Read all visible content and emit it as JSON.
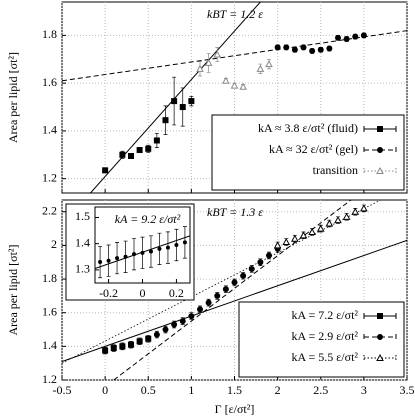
{
  "chart_data": [
    {
      "type": "errorbar",
      "annotation": "kBT = 1.2 ε",
      "ylabel": "Area per lipid [σt²]",
      "xlim": [
        -0.5,
        3.5
      ],
      "ylim": [
        1.14,
        1.94
      ],
      "xticks": [
        -0.5,
        0,
        0.5,
        1,
        1.5,
        2,
        2.5,
        3,
        3.5
      ],
      "yticks": [
        1.2,
        1.4,
        1.6,
        1.8
      ],
      "show_xtick_labels": false,
      "grid": true,
      "legend": "lower right",
      "series": [
        {
          "name": "kA ≈ 3.8 ε/σt² (fluid)",
          "color": "#000000",
          "marker": "square",
          "line": "solid",
          "x": [
            0,
            0.2,
            0.3,
            0.4,
            0.5,
            0.6,
            0.7,
            0.8,
            0.9,
            1.0
          ],
          "values": [
            1.235,
            1.3,
            1.295,
            1.32,
            1.325,
            1.36,
            1.445,
            1.525,
            1.5,
            1.525
          ],
          "errors": [
            0.01,
            0.015,
            0.01,
            0.01,
            0.015,
            0.03,
            0.06,
            0.1,
            0.08,
            0.02
          ],
          "fit_x": [
            -0.17,
            1.8
          ],
          "fit_y": [
            1.14,
            1.94
          ]
        },
        {
          "name": "kA ≈ 32 ε/σt² (gel)",
          "color": "#000000",
          "marker": "circle",
          "line": "dashed",
          "x": [
            2.0,
            2.1,
            2.2,
            2.3,
            2.4,
            2.5,
            2.6,
            2.7,
            2.8,
            2.9,
            3.0
          ],
          "values": [
            1.75,
            1.75,
            1.74,
            1.75,
            1.735,
            1.74,
            1.745,
            1.79,
            1.785,
            1.795,
            1.8
          ],
          "errors": [
            0.01,
            0.01,
            0.01,
            0.01,
            0.01,
            0.01,
            0.01,
            0.01,
            0.01,
            0.01,
            0.01
          ],
          "fit_x": [
            -0.5,
            3.5
          ],
          "fit_y": [
            1.61,
            1.82
          ]
        },
        {
          "name": "transition",
          "color": "#888888",
          "marker": "triangle",
          "line": "dotted",
          "x": [
            1.1,
            1.2,
            1.3,
            1.4,
            1.5,
            1.6,
            1.8,
            1.9
          ],
          "values": [
            1.66,
            1.685,
            1.72,
            1.61,
            1.59,
            1.585,
            1.66,
            1.68
          ],
          "errors": [
            0.03,
            0.04,
            0.03,
            0.01,
            0.01,
            0.01,
            0.02,
            0.02
          ]
        }
      ]
    },
    {
      "type": "errorbar",
      "annotation": "kBT = 1.3 ε",
      "ylabel": "Area per lipid [σt²]",
      "xlabel": "Γ [ε/σt²]",
      "xlim": [
        -0.5,
        3.5
      ],
      "ylim": [
        1.2,
        2.27
      ],
      "xticks": [
        -0.5,
        0,
        0.5,
        1,
        1.5,
        2,
        2.5,
        3,
        3.5
      ],
      "yticks": [
        1.2,
        1.4,
        1.6,
        1.8,
        2,
        2.2
      ],
      "show_xtick_labels": true,
      "grid": true,
      "legend": "lower right",
      "series": [
        {
          "name": "kA = 7.2 ε/σt²",
          "color": "#000000",
          "marker": "square",
          "line": "solid",
          "x": [
            0,
            0.1,
            0.2,
            0.3,
            0.4,
            0.5
          ],
          "values": [
            1.375,
            1.39,
            1.4,
            1.41,
            1.43,
            1.445
          ],
          "errors": [
            0.02,
            0.02,
            0.02,
            0.02,
            0.02,
            0.02
          ],
          "fit_x": [
            -0.5,
            3.5
          ],
          "fit_y": [
            1.31,
            2.03
          ]
        },
        {
          "name": "kA = 2.9 ε/σt²",
          "color": "#000000",
          "marker": "circle",
          "line": "dashed",
          "x": [
            0.6,
            0.7,
            0.8,
            0.9,
            1.0,
            1.1,
            1.2,
            1.3,
            1.4,
            1.5,
            1.6,
            1.7,
            1.8,
            1.9,
            2.0
          ],
          "values": [
            1.47,
            1.5,
            1.53,
            1.55,
            1.58,
            1.62,
            1.66,
            1.7,
            1.74,
            1.78,
            1.82,
            1.86,
            1.9,
            1.94,
            1.98
          ],
          "errors": [
            0.02,
            0.02,
            0.02,
            0.02,
            0.02,
            0.02,
            0.02,
            0.02,
            0.02,
            0.02,
            0.02,
            0.02,
            0.02,
            0.02,
            0.02
          ],
          "fit_x": [
            0.1,
            2.85
          ],
          "fit_y": [
            1.2,
            2.27
          ]
        },
        {
          "name": "kA = 5.5 ε/σt²",
          "color": "#000000",
          "marker": "triangle",
          "line": "dotted",
          "x": [
            2.0,
            2.1,
            2.2,
            2.3,
            2.4,
            2.5,
            2.6,
            2.7,
            2.8,
            2.9,
            3.0
          ],
          "values": [
            2.0,
            2.02,
            2.04,
            2.06,
            2.08,
            2.1,
            2.13,
            2.15,
            2.17,
            2.2,
            2.22
          ],
          "errors": [
            0.02,
            0.02,
            0.02,
            0.02,
            0.02,
            0.02,
            0.02,
            0.02,
            0.02,
            0.02,
            0.02
          ],
          "fit_x": [
            -0.5,
            3.5
          ],
          "fit_y": [
            1.3,
            2.35
          ]
        }
      ]
    },
    {
      "type": "errorbar",
      "annotation": "kA = 9.2 ε/σt²",
      "xlim": [
        -0.28,
        0.28
      ],
      "ylim": [
        1.25,
        1.54
      ],
      "xticks": [
        -0.2,
        0,
        0.2
      ],
      "yticks": [
        1.3,
        1.4,
        1.5
      ],
      "show_xtick_labels": true,
      "grid": false,
      "series": [
        {
          "color": "#000000",
          "marker": "dot",
          "line": "solid",
          "x": [
            -0.25,
            -0.2,
            -0.15,
            -0.1,
            -0.05,
            0,
            0.05,
            0.1,
            0.15,
            0.2,
            0.25
          ],
          "values": [
            1.33,
            1.335,
            1.345,
            1.35,
            1.36,
            1.365,
            1.37,
            1.38,
            1.385,
            1.395,
            1.405
          ],
          "errors": [
            0.06,
            0.06,
            0.06,
            0.06,
            0.06,
            0.06,
            0.06,
            0.06,
            0.06,
            0.06,
            0.06
          ],
          "fit_x": [
            -0.28,
            0.28
          ],
          "fit_y": [
            1.305,
            1.43
          ]
        }
      ]
    }
  ]
}
